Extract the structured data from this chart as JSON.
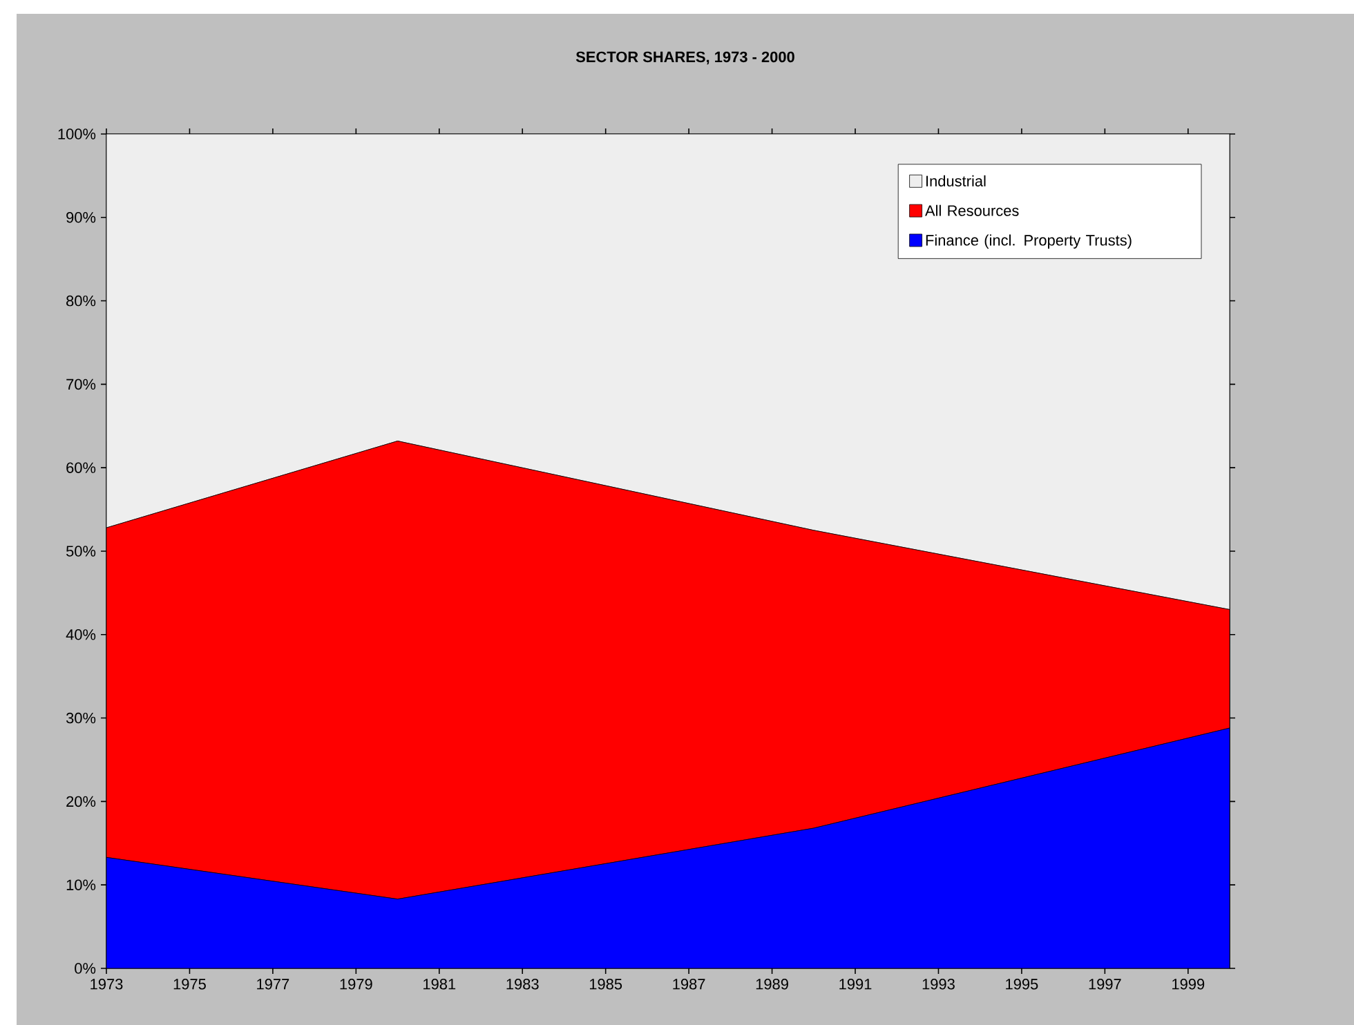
{
  "chart_data": {
    "type": "area",
    "title": "SECTOR SHARES, 1973 - 2000",
    "stacked": true,
    "x": [
      1973,
      1980,
      1990,
      2000
    ],
    "series": [
      {
        "name": "Finance (incl. Property Trusts)",
        "color": "#0000ff",
        "values": [
          13.3,
          8.3,
          16.8,
          28.8
        ]
      },
      {
        "name": "All Resources",
        "color": "#ff0000",
        "values": [
          39.5,
          54.9,
          35.7,
          14.2
        ]
      },
      {
        "name": "Industrial",
        "color": "#eeeeee",
        "values": [
          47.2,
          36.8,
          47.5,
          57.0
        ]
      }
    ],
    "xlim": [
      1973,
      2000
    ],
    "ylim": [
      0,
      100
    ],
    "xticks": [
      1973,
      1975,
      1977,
      1979,
      1981,
      1983,
      1985,
      1987,
      1989,
      1991,
      1993,
      1995,
      1997,
      1999
    ],
    "yticks": [
      {
        "value": 0,
        "label": "0%"
      },
      {
        "value": 10,
        "label": "10%"
      },
      {
        "value": 20,
        "label": "20%"
      },
      {
        "value": 30,
        "label": "30%"
      },
      {
        "value": 40,
        "label": "40%"
      },
      {
        "value": 50,
        "label": "50%"
      },
      {
        "value": 60,
        "label": "60%"
      },
      {
        "value": 70,
        "label": "70%"
      },
      {
        "value": 80,
        "label": "80%"
      },
      {
        "value": 90,
        "label": "90%"
      },
      {
        "value": 100,
        "label": "100%"
      }
    ],
    "legend": "top right"
  }
}
